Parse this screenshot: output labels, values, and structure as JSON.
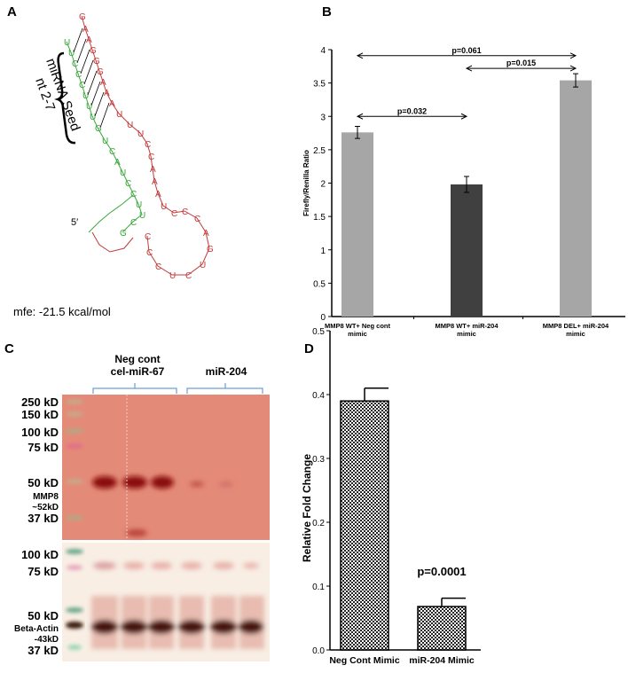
{
  "panels": {
    "a": {
      "label": "A",
      "seed_label_line1": "miRNA Seed",
      "seed_label_line2": "nt 2-7",
      "five_prime": "5′",
      "mfe": "mfe: -21.5 kcal/mol",
      "mirna_strand": "UUCCCUUUGUCAUCCUUCG",
      "target_strand": "GAAGGGAAAUUUCCAAAUCCCAGUCUCCC",
      "colors": {
        "mirna": "#3aa83a",
        "target": "#c43a3a"
      }
    },
    "b": {
      "label": "B"
    },
    "c": {
      "label": "C",
      "group1_line1": "Neg cont",
      "group1_line2": "cel-miR-67",
      "group2": "miR-204",
      "top_markers": [
        "250 kD",
        "150 kD",
        "100 kD",
        "75 kD",
        "50 kD",
        "37 kD"
      ],
      "top_protein_line1": "MMP8",
      "top_protein_line2": "~52kD",
      "bottom_markers": [
        "100 kD",
        "75 kD",
        "50 kD",
        "37 kD"
      ],
      "bottom_protein_line1": "Beta-Actin",
      "bottom_protein_line2": "-43kD"
    },
    "d": {
      "label": "D",
      "annotation": "p=0.0001"
    }
  },
  "chart_data": [
    {
      "type": "bar",
      "title": "",
      "ylabel": "Firefly/Renilla Ratio",
      "xlabel": "",
      "categories": [
        "MMP8 WT+ Neg cont mimic",
        "MMP8 WT+ miR-204 mimic",
        "MMP8 DEL+ miR-204 mimic"
      ],
      "values": [
        2.76,
        1.98,
        3.54
      ],
      "errors": [
        0.09,
        0.12,
        0.1
      ],
      "colors": [
        "#a6a6a6",
        "#404040",
        "#a6a6a6"
      ],
      "ylim": [
        0,
        4
      ],
      "yticks": [
        "0",
        "0.5",
        "1",
        "1.5",
        "2",
        "2.5",
        "3",
        "3.5",
        "4"
      ],
      "comparisons": [
        {
          "from": 0,
          "to": 1,
          "label": "p=0.032",
          "level": 3.0
        },
        {
          "from": 0,
          "to": 2,
          "label": "p=0.061",
          "level": 3.91
        },
        {
          "from": 1,
          "to": 2,
          "label": "p=0.015",
          "level": 3.72
        }
      ]
    },
    {
      "type": "bar",
      "title": "",
      "ylabel": "Relative Fold Change",
      "xlabel": "",
      "categories": [
        "Neg Cont Mimic",
        "miR-204 Mimic"
      ],
      "values": [
        0.39,
        0.068
      ],
      "errors": [
        0.02,
        0.013
      ],
      "ylim": [
        0,
        0.5
      ],
      "yticks": [
        "0.0",
        "0.1",
        "0.2",
        "0.3",
        "0.4",
        "0.5"
      ],
      "fill": "checkered"
    }
  ]
}
